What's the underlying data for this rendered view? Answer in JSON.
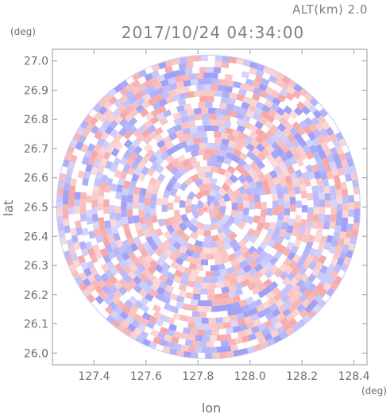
{
  "chart_data": {
    "type": "heatmap",
    "title": "2017/10/24 04:34:00",
    "altitude_label": "ALT(km) 2.0",
    "xlabel": "lon",
    "ylabel": "lat",
    "x_unit": "(deg)",
    "y_unit": "(deg)",
    "xlim": [
      127.24,
      128.45
    ],
    "ylim": [
      25.96,
      27.04
    ],
    "x_ticks": [
      127.4,
      127.6,
      127.8,
      128.0,
      128.2,
      128.4
    ],
    "x_tick_labels": [
      "127.4",
      "127.6",
      "127.8",
      "128.0",
      "128.2",
      "128.4"
    ],
    "y_ticks": [
      26.0,
      26.1,
      26.2,
      26.3,
      26.4,
      26.5,
      26.6,
      26.7,
      26.8,
      26.9,
      27.0
    ],
    "y_tick_labels": [
      "26.0",
      "26.1",
      "26.2",
      "26.3",
      "26.4",
      "26.5",
      "26.6",
      "26.7",
      "26.8",
      "26.9",
      "27.0"
    ],
    "radar_center": {
      "lon": 127.84,
      "lat": 26.5
    },
    "radar_range_deg": 0.55,
    "colormap": {
      "negative": "#8f8ff5",
      "neutral": "#ffffff",
      "positive": "#f59a9a"
    },
    "grid": false,
    "legend": "none"
  }
}
